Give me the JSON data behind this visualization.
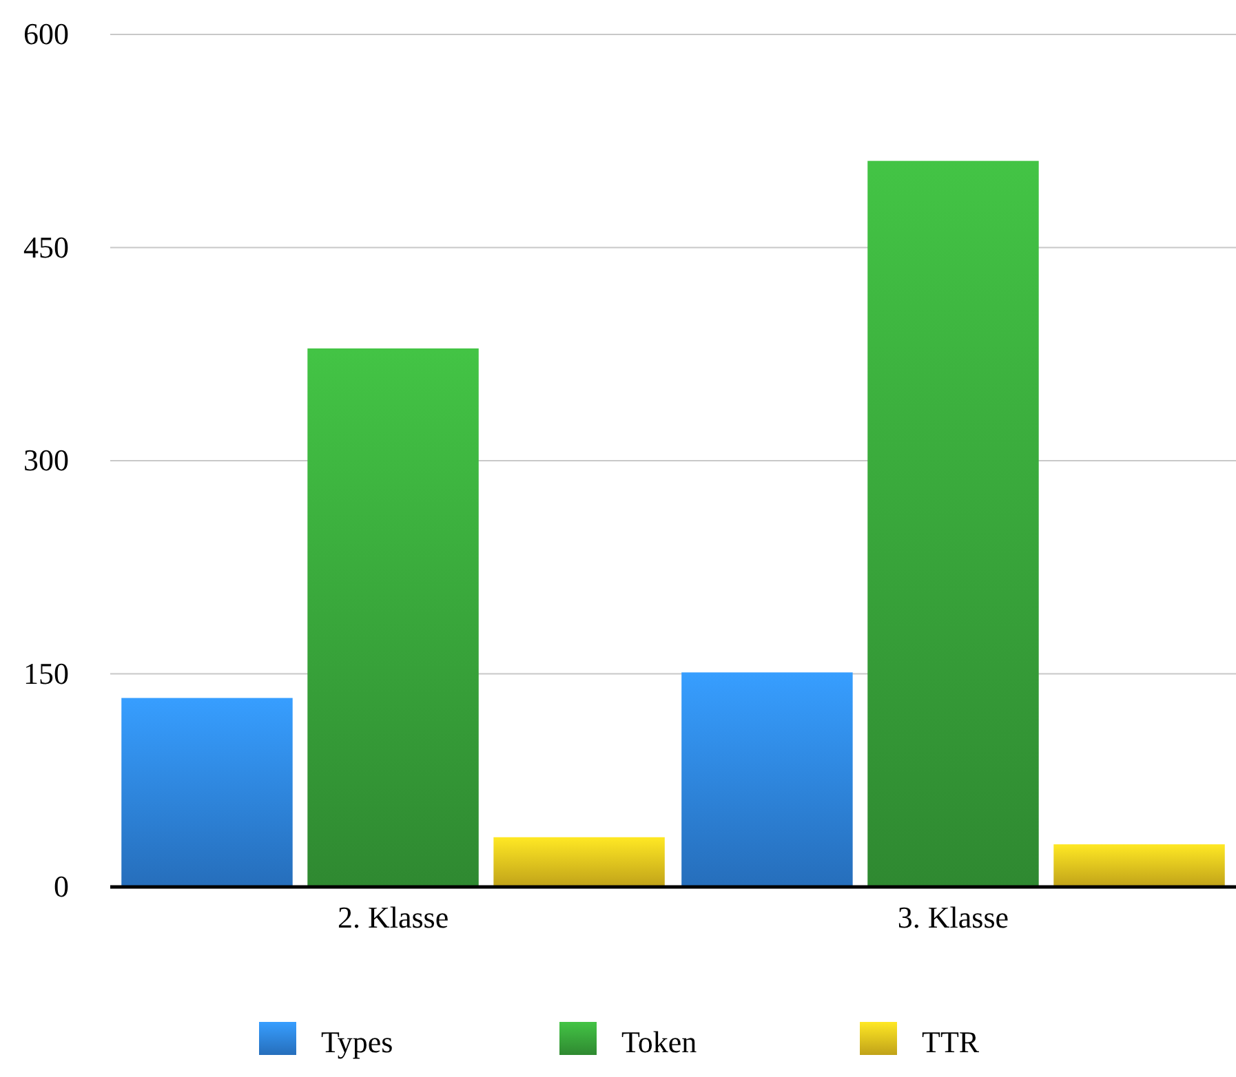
{
  "chart_data": {
    "type": "bar",
    "categories": [
      "2. Klasse",
      "3. Klasse"
    ],
    "series": [
      {
        "name": "Types",
        "color": "#2e84e0",
        "values": [
          133,
          151
        ]
      },
      {
        "name": "Token",
        "color": "#38a43a",
        "values": [
          379,
          511
        ]
      },
      {
        "name": "TTR",
        "color": "#e6c21e",
        "values": [
          35,
          30
        ]
      }
    ],
    "ylim": [
      0,
      600
    ],
    "yticks": [
      0,
      150,
      300,
      450,
      600
    ],
    "grid": "y",
    "legend": "bottom"
  }
}
